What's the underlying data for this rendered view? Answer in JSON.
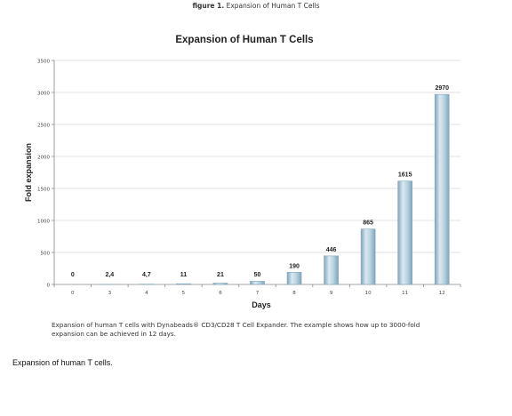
{
  "figure": {
    "label_prefix": "figure 1.",
    "label_text": "Expansion of Human T Cells",
    "caption_lines": [
      "Expansion of human T cells with Dynabeads® CD3/CD28 T Cell Expander. The example shows how up to 3000-fold",
      "expansion can be achieved in 12 days."
    ]
  },
  "page_caption": "Expansion of human T cells.",
  "chart_data": {
    "type": "bar",
    "title": "Expansion of Human T Cells",
    "xlabel": "Days",
    "ylabel": "Fold expansion",
    "ylim": [
      0,
      3500
    ],
    "yticks": [
      0,
      500,
      1000,
      1500,
      2000,
      2500,
      3000,
      3500
    ],
    "categories": [
      "0",
      "3",
      "4",
      "5",
      "6",
      "7",
      "8",
      "9",
      "10",
      "11",
      "12"
    ],
    "values": [
      0,
      2.4,
      4.7,
      11,
      21,
      50,
      190,
      446,
      865,
      1615,
      2970
    ],
    "value_labels": [
      "0",
      "2,4",
      "4,7",
      "11",
      "21",
      "50",
      "190",
      "446",
      "865",
      "1615",
      "2970"
    ],
    "grid": true,
    "legend": "none",
    "bar_color": "#a8c8d8",
    "bar_edge_color": "#7fa6bb"
  }
}
